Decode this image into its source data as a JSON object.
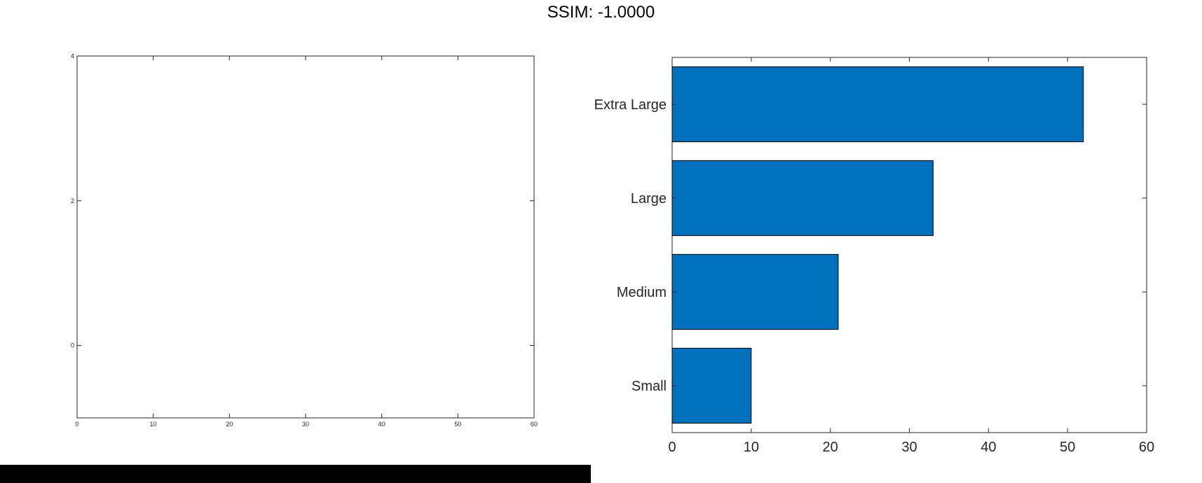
{
  "figure": {
    "title": "SSIM: -1.0000"
  },
  "colors": {
    "bar_fill": "#0072BD",
    "bar_edge": "#000000",
    "axis": "#262626",
    "background": "#ffffff",
    "bottom_bar": "#000000"
  },
  "chart_data": [
    {
      "type": "line",
      "title": "",
      "xlabel": "",
      "ylabel": "",
      "xlim": [
        0,
        60
      ],
      "ylim": [
        -1,
        4
      ],
      "x_ticks": [
        "0",
        "10",
        "20",
        "30",
        "40",
        "50",
        "60"
      ],
      "y_ticks": [
        "0",
        "2",
        "4"
      ],
      "series": [],
      "grid": false,
      "legend": "none"
    },
    {
      "type": "bar",
      "orientation": "horizontal",
      "title": "",
      "xlabel": "",
      "ylabel": "",
      "categories": [
        "Small",
        "Medium",
        "Large",
        "Extra Large"
      ],
      "values": [
        10,
        21,
        33,
        52
      ],
      "xlim": [
        0,
        60
      ],
      "x_ticks": [
        "0",
        "10",
        "20",
        "30",
        "40",
        "50",
        "60"
      ],
      "grid": false,
      "legend": "none"
    }
  ]
}
